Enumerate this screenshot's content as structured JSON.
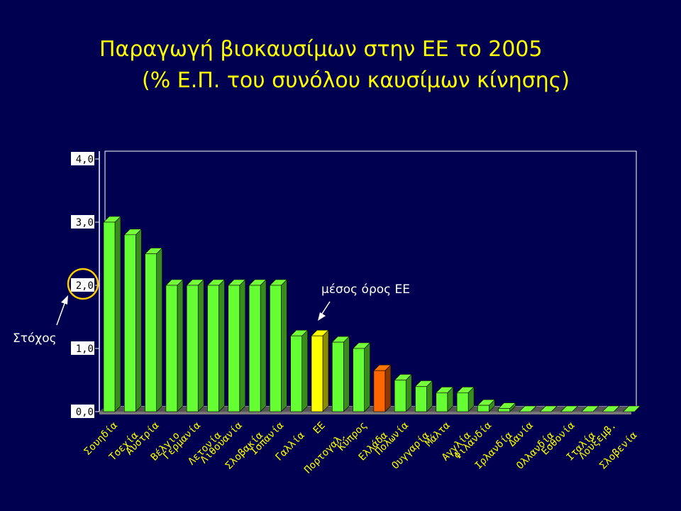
{
  "title": {
    "line1": "Παραγωγή βιοκαυσίμων στην ΕΕ το 2005",
    "line2": "(% Ε.Π. του συνόλου καυσίμων κίνησης)"
  },
  "annotations": {
    "target_label": "Στόχος",
    "average_label": "μέσος όρος ΕΕ"
  },
  "colors": {
    "background": "#000050",
    "title": "#ffff00",
    "bar_default": "#66ff33",
    "bar_eu_average": "#ffff00",
    "bar_greece": "#ff6600",
    "target_circle": "#ffcc00"
  },
  "chart_data": {
    "type": "bar",
    "categories": [
      "Σουηδία",
      "Τσεχία",
      "Αυστρία",
      "Βέλγιο",
      "Γερμανία",
      "Λετονία",
      "Λιθουανία",
      "Σλοβακία",
      "Ισπανία",
      "Γαλλία",
      "ΕΕ",
      "Πορτογαλ.",
      "Κύπρος",
      "Ελλάδα",
      "Πολωνία",
      "Ουγγαρία",
      "Μάλτα",
      "Αγγλία",
      "Φιλανδία",
      "Ιρλανδία",
      "Δανία",
      "Ολλανδία",
      "Εσθονία",
      "Ιταλία",
      "Λουξεμβ.",
      "Σλοβενία"
    ],
    "values": [
      3.0,
      2.8,
      2.5,
      2.0,
      2.0,
      2.0,
      2.0,
      2.0,
      2.0,
      1.2,
      1.2,
      1.1,
      1.0,
      0.65,
      0.5,
      0.4,
      0.3,
      0.3,
      0.1,
      0.05,
      0.0,
      0.0,
      0.0,
      0.0,
      0.0,
      0.0
    ],
    "highlight": {
      "ΕΕ": "bar_eu_average",
      "Ελλάδα": "bar_greece"
    },
    "yticks": [
      "4,0",
      "3,0",
      "2,0",
      "1,0",
      "0,0"
    ],
    "ytick_values": [
      4,
      3,
      2,
      1,
      0
    ],
    "ylim": [
      0,
      4
    ],
    "target_value": 2.0,
    "xlabel": "",
    "ylabel": "",
    "grid": false,
    "legend": "none"
  }
}
